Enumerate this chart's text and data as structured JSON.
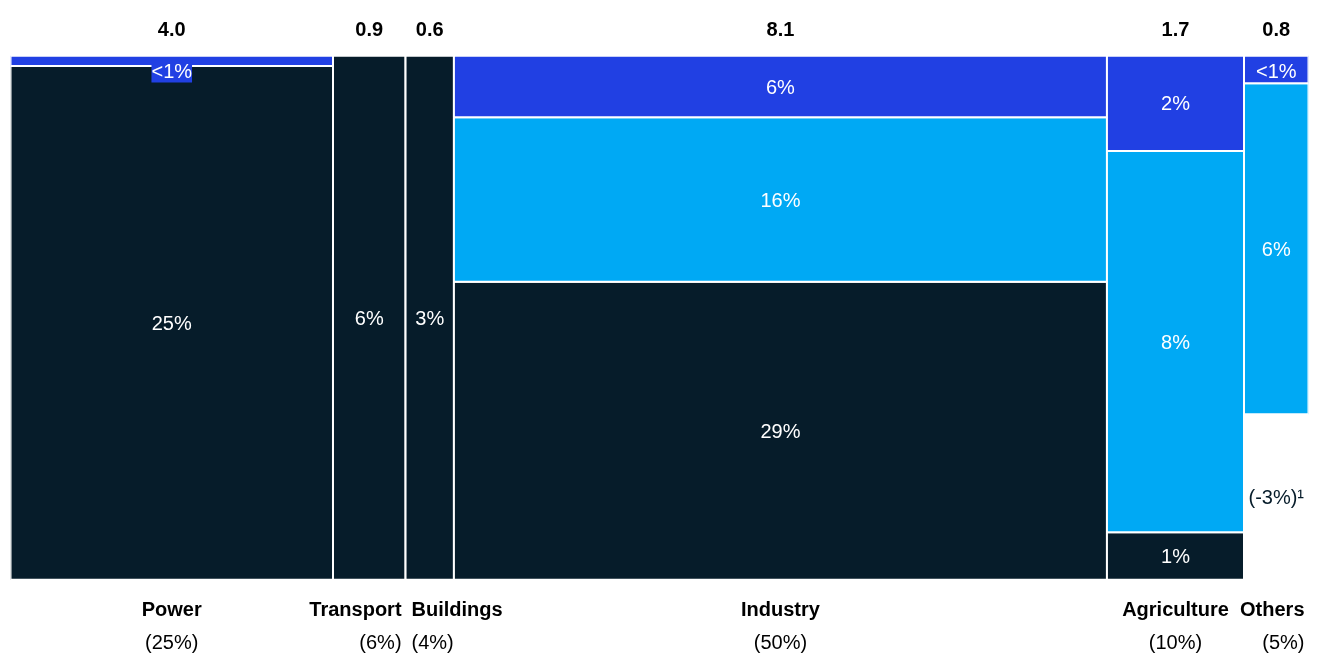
{
  "chart_data": {
    "type": "other",
    "categories": [
      "Power\n(25%)",
      "Transport\n(6%)",
      "Buildings\n(4%)",
      "Industry\n(50%)",
      "Agriculture\n(10%)",
      "Others\n(5%)"
    ],
    "totals": [
      "4.0",
      "0.9",
      "0.6",
      "8.1",
      "1.7",
      "0.8"
    ],
    "series": [
      {
        "color": "#061c2a",
        "values": [
          25,
          6,
          3,
          29,
          1,
          -3
        ],
        "value_labels": [
          "25%",
          "6%",
          "3%",
          "29%",
          "1%",
          "(-3%)¹"
        ]
      },
      {
        "color": "#00a9f4",
        "values": [
          null,
          null,
          null,
          16,
          8,
          6
        ],
        "value_labels": [
          null,
          null,
          null,
          "16%",
          "8%",
          "6%"
        ]
      },
      {
        "color": "#2140e3",
        "values": [
          0.5,
          null,
          null,
          6,
          2,
          0.5
        ],
        "value_labels": [
          "<1%",
          null,
          null,
          "6%",
          "2%",
          "<1%"
        ]
      }
    ]
  }
}
